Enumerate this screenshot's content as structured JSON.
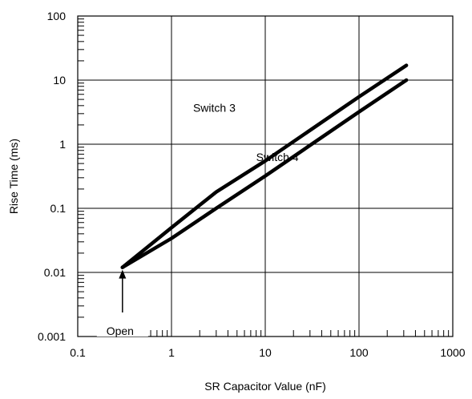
{
  "chart_data": {
    "type": "line",
    "title": "",
    "xlabel": "SR Capacitor Value (nF)",
    "ylabel": "Rise Time (ms)",
    "x_scale": "log",
    "y_scale": "log",
    "xlim": [
      0.1,
      1000
    ],
    "ylim": [
      0.001,
      100
    ],
    "x_ticks": [
      "0.1",
      "1",
      "10",
      "100",
      "1000"
    ],
    "y_ticks": [
      "0.001",
      "0.01",
      "0.1",
      "1",
      "10",
      "100"
    ],
    "grid": true,
    "series": [
      {
        "name": "Switch 3",
        "x": [
          0.3,
          1,
          3,
          10,
          100,
          320
        ],
        "y": [
          0.012,
          0.05,
          0.18,
          0.55,
          5.5,
          17
        ]
      },
      {
        "name": "Switch 4",
        "x": [
          0.3,
          1,
          3,
          10,
          100,
          320
        ],
        "y": [
          0.012,
          0.034,
          0.1,
          0.32,
          3.2,
          10
        ]
      }
    ],
    "annotations": [
      {
        "text": "Switch 3",
        "x": 1.7,
        "y": 3.2
      },
      {
        "text": "Switch 4",
        "x": 8.0,
        "y": 0.55
      },
      {
        "text": "Open",
        "x": 0.3,
        "y": 0.001,
        "arrow_to": [
          0.3,
          0.012
        ]
      }
    ],
    "colors": {
      "line": "#000000",
      "grid": "#000000"
    }
  }
}
